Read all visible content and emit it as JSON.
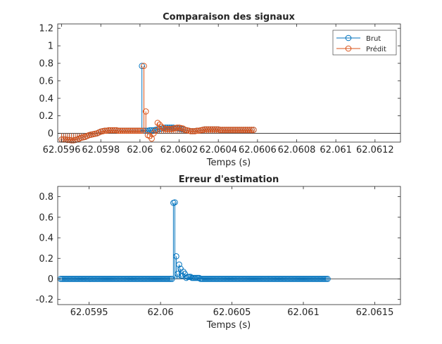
{
  "chart_data": [
    {
      "type": "stem",
      "title": "Comparaison des signaux",
      "xlabel": "Temps (s)",
      "ylabel": "",
      "xlim": [
        62.05958,
        62.06133
      ],
      "ylim": [
        -0.1,
        1.25
      ],
      "xticks": [
        62.0596,
        62.0598,
        62.06,
        62.0602,
        62.0604,
        62.0606,
        62.0608,
        62.061,
        62.0612
      ],
      "xtick_labels": [
        "62.0596",
        "62.0598",
        "62.06",
        "62.0602",
        "62.0604",
        "62.0606",
        "62.0608",
        "62.061",
        "62.0612"
      ],
      "yticks": [
        0,
        0.2,
        0.4,
        0.6,
        0.8,
        1,
        1.2
      ],
      "ytick_labels": [
        "0",
        "0.2",
        "0.4",
        "0.6",
        "0.8",
        "1",
        "1.2"
      ],
      "legend_position": "top-right",
      "series": [
        {
          "name": "Brut",
          "color": "#0072BD",
          "x0": 62.0596,
          "dx": 1e-05,
          "values": [
            -0.07,
            -0.07,
            -0.07,
            -0.075,
            -0.075,
            -0.08,
            -0.08,
            -0.075,
            -0.07,
            -0.06,
            -0.05,
            -0.045,
            -0.04,
            -0.03,
            -0.02,
            -0.015,
            -0.01,
            -0.005,
            0.0,
            0.01,
            0.02,
            0.025,
            0.03,
            0.03,
            0.035,
            0.035,
            0.035,
            0.035,
            0.035,
            0.03,
            0.03,
            0.03,
            0.03,
            0.03,
            0.03,
            0.03,
            0.03,
            0.03,
            0.03,
            0.03,
            0.03,
            0.77,
            0.03,
            0.03,
            0.03,
            0.035,
            0.035,
            0.035,
            0.04,
            0.045,
            0.05,
            0.055,
            0.06,
            0.065,
            0.065,
            0.065,
            0.065,
            0.065,
            0.06,
            0.06,
            0.055,
            0.05,
            0.045,
            0.04,
            0.035,
            0.03,
            0.025,
            0.025,
            0.025,
            0.03,
            0.03,
            0.035,
            0.04,
            0.045,
            0.045,
            0.045,
            0.045,
            0.045,
            0.045,
            0.045,
            0.045,
            0.04,
            0.04,
            0.04,
            0.04,
            0.04,
            0.04,
            0.04,
            0.04,
            0.04,
            0.04,
            0.04,
            0.04,
            0.04,
            0.04,
            0.04,
            0.04,
            0.04,
            0.04
          ]
        },
        {
          "name": "Prédit",
          "color": "#D95319",
          "x0": 62.0596,
          "dx": 1e-05,
          "values": [
            -0.07,
            -0.07,
            -0.07,
            -0.075,
            -0.075,
            -0.08,
            -0.08,
            -0.075,
            -0.07,
            -0.06,
            -0.05,
            -0.045,
            -0.04,
            -0.03,
            -0.02,
            -0.015,
            -0.01,
            -0.005,
            0.0,
            0.01,
            0.02,
            0.025,
            0.03,
            0.03,
            0.035,
            0.035,
            0.035,
            0.035,
            0.035,
            0.03,
            0.03,
            0.03,
            0.03,
            0.03,
            0.03,
            0.03,
            0.03,
            0.03,
            0.03,
            0.03,
            0.03,
            0.03,
            0.77,
            0.25,
            -0.02,
            -0.03,
            -0.06,
            0.0,
            0.03,
            0.12,
            0.1,
            0.075,
            0.06,
            0.05,
            0.05,
            0.05,
            0.05,
            0.055,
            0.06,
            0.065,
            0.065,
            0.06,
            0.055,
            0.04,
            0.035,
            0.03,
            0.025,
            0.025,
            0.025,
            0.03,
            0.03,
            0.035,
            0.04,
            0.045,
            0.045,
            0.045,
            0.045,
            0.045,
            0.045,
            0.045,
            0.045,
            0.04,
            0.04,
            0.04,
            0.04,
            0.04,
            0.04,
            0.04,
            0.04,
            0.04,
            0.04,
            0.04,
            0.04,
            0.04,
            0.04,
            0.04,
            0.04,
            0.04,
            0.04
          ]
        }
      ]
    },
    {
      "type": "stem",
      "title": "Erreur d'estimation",
      "xlabel": "Temps (s)",
      "ylabel": "",
      "xlim": [
        62.05928,
        62.06168
      ],
      "ylim": [
        -0.25,
        0.9
      ],
      "xticks": [
        62.0595,
        62.06,
        62.0605,
        62.061,
        62.0615
      ],
      "xtick_labels": [
        "62.0595",
        "62.06",
        "62.0605",
        "62.061",
        "62.0615"
      ],
      "yticks": [
        -0.2,
        0,
        0.2,
        0.4,
        0.6,
        0.8
      ],
      "ytick_labels": [
        "-0.2",
        "0",
        "0.2",
        "0.4",
        "0.6",
        "0.8"
      ],
      "series": [
        {
          "color": "#0072BD",
          "x0": 62.0593,
          "dx": 1e-05,
          "values": [
            0,
            0,
            0,
            0,
            0,
            0,
            0,
            0,
            0,
            0,
            0,
            0,
            0,
            0,
            0,
            0,
            0,
            0,
            0,
            0,
            0,
            0,
            0,
            0,
            0,
            0,
            0,
            0,
            0,
            0,
            0,
            0,
            0,
            0,
            0,
            0,
            0,
            0,
            0,
            0,
            0,
            0,
            0,
            0,
            0,
            0,
            0,
            0,
            0,
            0,
            0,
            0,
            0,
            0,
            0,
            0,
            0,
            0,
            0,
            0,
            0,
            0,
            0,
            0,
            0,
            0,
            0,
            0,
            0,
            0,
            0,
            0,
            0,
            0,
            0,
            0,
            0,
            0,
            0,
            0.74,
            0.745,
            0.22,
            0.05,
            0.14,
            0.1,
            0.03,
            0.07,
            0.05,
            0.01,
            0.02,
            0.02,
            0.02,
            0.01,
            0.01,
            0.01,
            0.01,
            0.01,
            0.01,
            0,
            0,
            0,
            0,
            0,
            0,
            0,
            0,
            0,
            0,
            0,
            0,
            0,
            0,
            0,
            0,
            0,
            0,
            0,
            0,
            0,
            0,
            0,
            0,
            0,
            0,
            0,
            0,
            0,
            0,
            0,
            0,
            0,
            0,
            0,
            0,
            0,
            0,
            0,
            0,
            0,
            0,
            0,
            0,
            0,
            0,
            0,
            0,
            0,
            0,
            0,
            0,
            0,
            0,
            0,
            0,
            0,
            0,
            0,
            0,
            0,
            0,
            0,
            0,
            0,
            0,
            0,
            0,
            0,
            0,
            0,
            0,
            0,
            0,
            0,
            0,
            0,
            0,
            0,
            0,
            0,
            0,
            0,
            0,
            0,
            0,
            0,
            0,
            0,
            0
          ]
        }
      ]
    }
  ]
}
